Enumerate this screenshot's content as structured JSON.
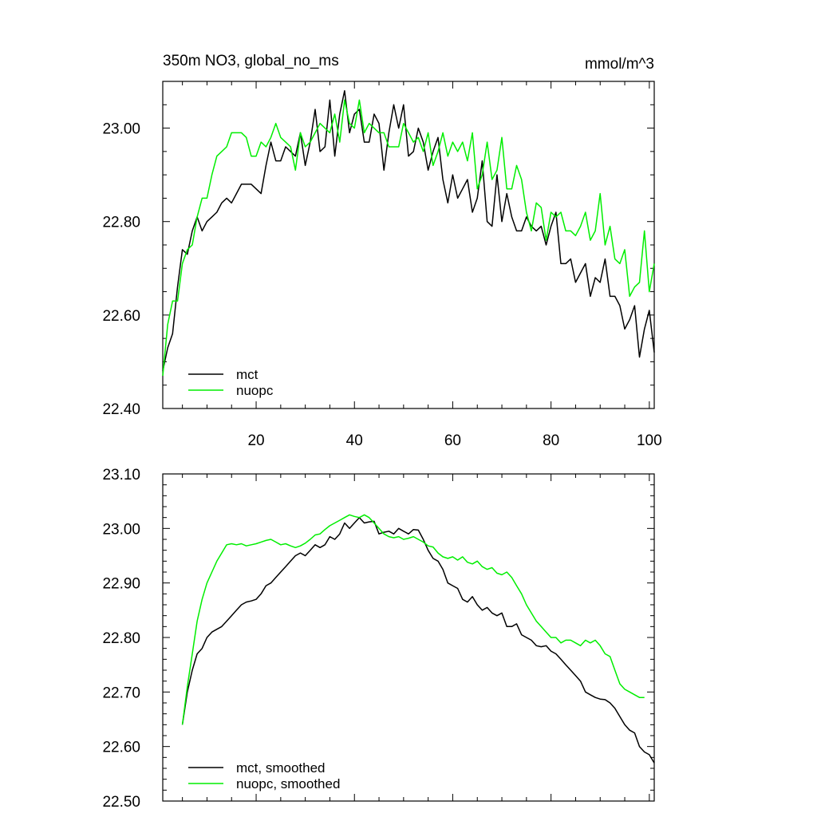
{
  "chart_data": [
    {
      "type": "line",
      "title": "350m NO3, global_no_ms",
      "units": "mmol/m^3",
      "xlabel": "",
      "ylabel": "",
      "xlim": [
        1,
        101
      ],
      "ylim": [
        22.4,
        23.1
      ],
      "xticks": [
        20,
        40,
        60,
        80,
        100
      ],
      "yticks": [
        22.4,
        22.6,
        22.8,
        23.0
      ],
      "ytick_labels": [
        "22.40",
        "22.60",
        "22.80",
        "23.00"
      ],
      "legend_placement": "bottom-left",
      "grid": false,
      "series": [
        {
          "name": "mct",
          "color": "#000000",
          "values": [
            22.48,
            22.53,
            22.56,
            22.66,
            22.74,
            22.73,
            22.78,
            22.81,
            22.78,
            22.8,
            22.81,
            22.82,
            22.84,
            22.85,
            22.84,
            22.86,
            22.88,
            22.88,
            22.88,
            22.87,
            22.86,
            22.92,
            22.97,
            22.93,
            22.93,
            22.96,
            22.95,
            22.94,
            22.99,
            22.92,
            22.97,
            23.04,
            22.95,
            22.96,
            23.06,
            22.94,
            23.03,
            23.08,
            22.99,
            23.03,
            23.04,
            22.97,
            22.97,
            23.03,
            23.01,
            22.91,
            22.99,
            23.05,
            23.0,
            23.05,
            22.94,
            22.95,
            23.0,
            22.97,
            22.91,
            22.95,
            22.98,
            22.89,
            22.84,
            22.9,
            22.85,
            22.87,
            22.89,
            22.82,
            22.85,
            22.93,
            22.8,
            22.79,
            22.9,
            22.8,
            22.86,
            22.81,
            22.78,
            22.78,
            22.81,
            22.79,
            22.78,
            22.79,
            22.75,
            22.79,
            22.82,
            22.71,
            22.71,
            22.72,
            22.67,
            22.69,
            22.71,
            22.64,
            22.68,
            22.67,
            22.72,
            22.64,
            22.64,
            22.62,
            22.57,
            22.59,
            22.62,
            22.51,
            22.57,
            22.61,
            22.52
          ]
        },
        {
          "name": "nuopc",
          "color": "#00ee00",
          "values": [
            22.47,
            22.58,
            22.63,
            22.63,
            22.71,
            22.74,
            22.75,
            22.81,
            22.85,
            22.85,
            22.9,
            22.94,
            22.95,
            22.96,
            22.99,
            22.99,
            22.99,
            22.98,
            22.94,
            22.94,
            22.97,
            22.96,
            22.98,
            23.01,
            22.98,
            22.97,
            22.96,
            22.91,
            22.99,
            22.96,
            22.97,
            22.99,
            23.01,
            23.0,
            22.99,
            23.03,
            22.97,
            23.06,
            23.01,
            23.0,
            23.06,
            22.99,
            23.01,
            23.0,
            22.99,
            22.99,
            22.96,
            22.96,
            22.96,
            23.01,
            22.99,
            22.97,
            22.98,
            22.95,
            22.99,
            22.92,
            22.95,
            22.99,
            22.94,
            22.97,
            22.95,
            22.97,
            22.93,
            22.99,
            22.87,
            22.9,
            22.97,
            22.89,
            22.91,
            22.98,
            22.87,
            22.87,
            22.92,
            22.89,
            22.82,
            22.78,
            22.84,
            22.83,
            22.76,
            22.82,
            22.81,
            22.82,
            22.78,
            22.78,
            22.77,
            22.79,
            22.82,
            22.76,
            22.78,
            22.86,
            22.75,
            22.79,
            22.72,
            22.71,
            22.74,
            22.64,
            22.66,
            22.67,
            22.78,
            22.65,
            22.71
          ]
        }
      ]
    },
    {
      "type": "line",
      "title": "",
      "xlabel": "",
      "ylabel": "",
      "xlim": [
        1,
        101
      ],
      "ylim": [
        22.5,
        23.1
      ],
      "xticks": [
        20,
        40,
        60,
        80,
        100
      ],
      "yticks": [
        22.5,
        22.6,
        22.7,
        22.8,
        22.9,
        23.0,
        23.1
      ],
      "ytick_labels": [
        "22.50",
        "22.60",
        "22.70",
        "22.80",
        "22.90",
        "23.00",
        "23.10"
      ],
      "legend_placement": "bottom-left",
      "grid": false,
      "series": [
        {
          "name": "mct, smoothed",
          "color": "#000000",
          "x_start": 5,
          "values": [
            22.64,
            22.7,
            22.74,
            22.77,
            22.78,
            22.8,
            22.81,
            22.815,
            22.82,
            22.83,
            22.84,
            22.85,
            22.86,
            22.865,
            22.867,
            22.87,
            22.88,
            22.895,
            22.9,
            22.91,
            22.92,
            22.93,
            22.94,
            22.95,
            22.955,
            22.95,
            22.96,
            22.97,
            22.965,
            22.97,
            22.985,
            22.98,
            22.99,
            23.01,
            23.0,
            23.01,
            23.02,
            23.01,
            23.012,
            23.013,
            22.99,
            22.993,
            22.995,
            22.99,
            23.0,
            22.995,
            22.99,
            22.998,
            22.997,
            22.98,
            22.96,
            22.945,
            22.94,
            22.925,
            22.9,
            22.895,
            22.89,
            22.87,
            22.865,
            22.875,
            22.86,
            22.85,
            22.855,
            22.845,
            22.84,
            22.845,
            22.82,
            22.82,
            22.825,
            22.805,
            22.8,
            22.795,
            22.785,
            22.783,
            22.785,
            22.775,
            22.77,
            22.76,
            22.75,
            22.74,
            22.73,
            22.72,
            22.7,
            22.695,
            22.69,
            22.687,
            22.686,
            22.68,
            22.67,
            22.655,
            22.64,
            22.63,
            22.625,
            22.6,
            22.59,
            22.585,
            22.57
          ]
        },
        {
          "name": "nuopc, smoothed",
          "color": "#00ee00",
          "x_start": 5,
          "values": [
            22.64,
            22.71,
            22.77,
            22.83,
            22.87,
            22.9,
            22.92,
            22.94,
            22.955,
            22.97,
            22.972,
            22.97,
            22.972,
            22.968,
            22.97,
            22.972,
            22.975,
            22.978,
            22.98,
            22.975,
            22.97,
            22.972,
            22.968,
            22.965,
            22.968,
            22.973,
            22.98,
            22.988,
            22.99,
            22.998,
            23.005,
            23.01,
            23.015,
            23.02,
            23.025,
            23.022,
            23.02,
            23.025,
            23.02,
            23.01,
            23.0,
            22.99,
            22.985,
            22.983,
            22.985,
            22.98,
            22.982,
            22.985,
            22.98,
            22.975,
            22.968,
            22.966,
            22.955,
            22.948,
            22.945,
            22.948,
            22.942,
            22.948,
            22.938,
            22.935,
            22.94,
            22.93,
            22.925,
            22.928,
            22.918,
            22.915,
            22.92,
            22.91,
            22.895,
            22.88,
            22.86,
            22.845,
            22.83,
            22.82,
            22.81,
            22.8,
            22.8,
            22.79,
            22.795,
            22.795,
            22.79,
            22.785,
            22.795,
            22.79,
            22.795,
            22.785,
            22.77,
            22.765,
            22.74,
            22.715,
            22.705,
            22.7,
            22.695,
            22.69,
            22.69
          ]
        }
      ]
    }
  ]
}
